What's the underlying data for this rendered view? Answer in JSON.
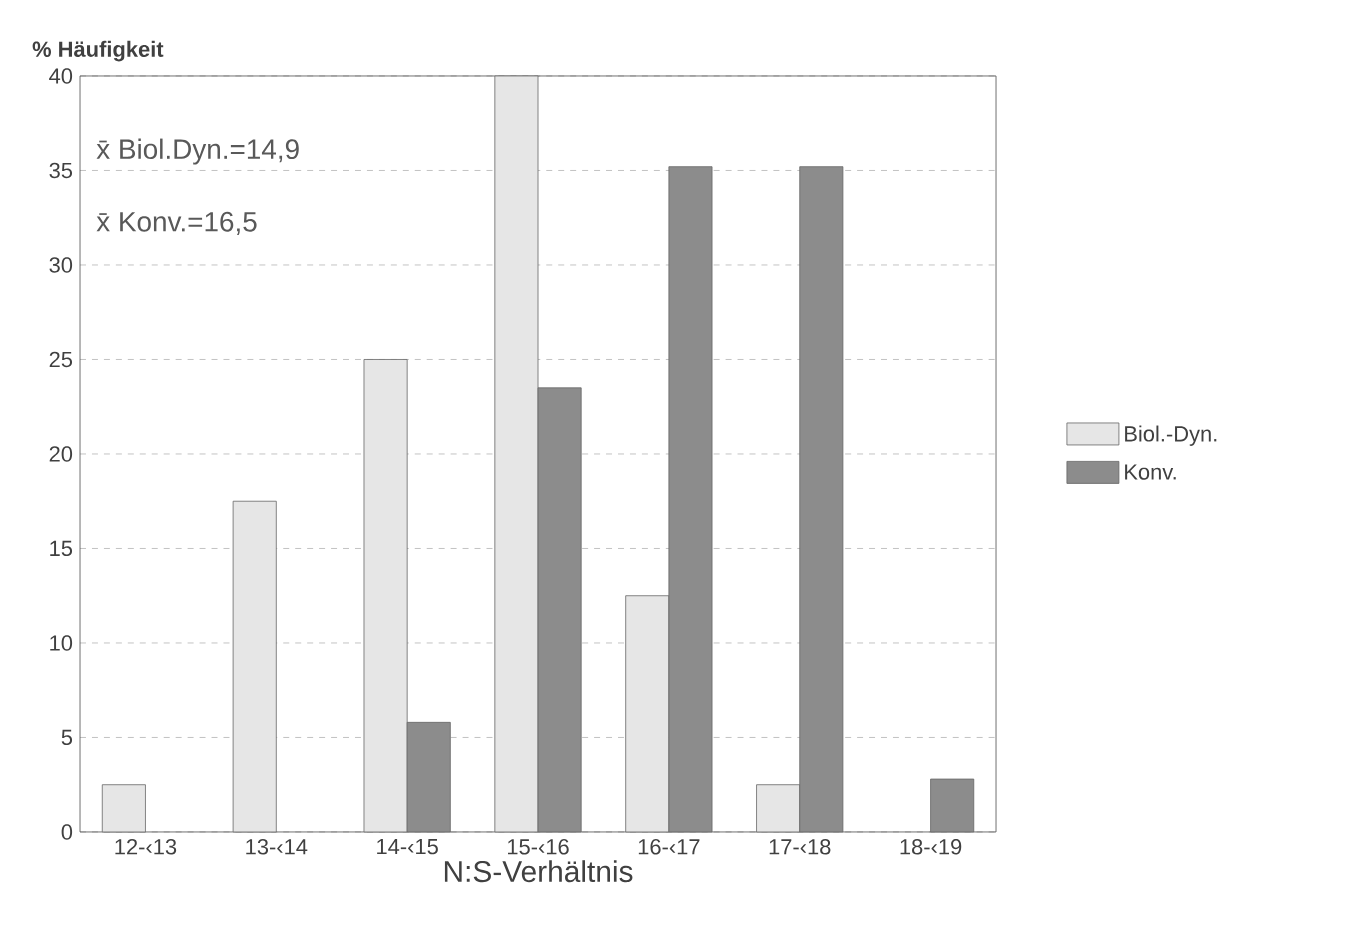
{
  "chart_data": {
    "type": "bar",
    "xlabel": "N:S-Verhältnis",
    "ylabel": "% Häufigkeit",
    "categories": [
      "12-‹13",
      "13-‹14",
      "14-‹15",
      "15-‹16",
      "16-‹17",
      "17-‹18",
      "18-‹19"
    ],
    "series": [
      {
        "name": "Biol.-Dyn.",
        "color": "#e6e6e6",
        "values": [
          2.5,
          17.5,
          25,
          40,
          12.5,
          2.5,
          null
        ]
      },
      {
        "name": "Konv.",
        "color": "#8c8c8c",
        "values": [
          null,
          null,
          5.8,
          23.5,
          35.2,
          35.2,
          2.8
        ]
      }
    ],
    "ylim": [
      0,
      40
    ],
    "yticks": [
      0,
      5,
      10,
      15,
      20,
      25,
      30,
      35,
      40
    ],
    "grid": "y",
    "legend": "right",
    "annotations": [
      "x̄ Biol.Dyn.=14,9",
      "x̄ Konv.=16,5"
    ]
  }
}
